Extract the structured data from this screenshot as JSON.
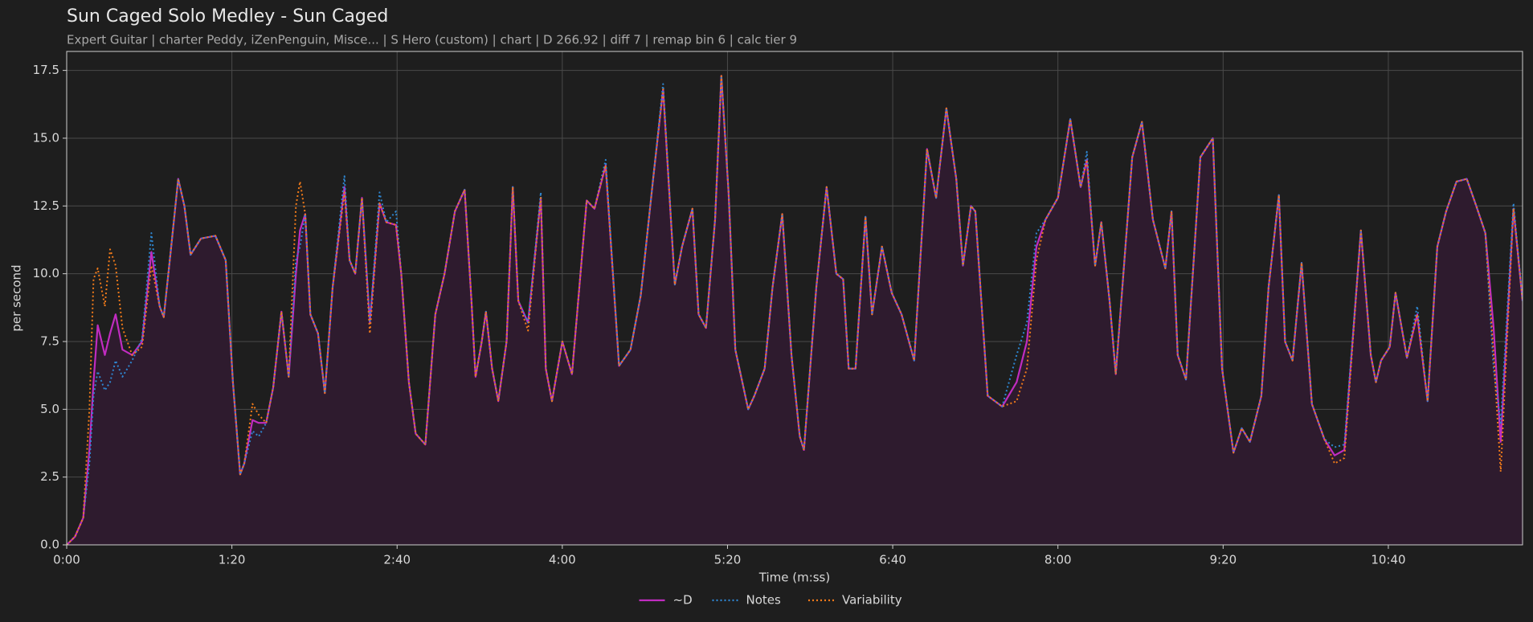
{
  "chart_data": {
    "type": "line",
    "title": "Sun Caged Solo Medley - Sun Caged",
    "subtitle": "Expert Guitar  |  charter Peddy, iZenPenguin, Misce...  |  S Hero (custom)  |  chart  |  D 266.92  |  diff 7  |  remap bin 6  |  calc tier 9",
    "x_label": "Time (m:ss)",
    "y_label": "per second",
    "xlim": [
      0,
      705
    ],
    "ylim": [
      0,
      18.2
    ],
    "xticks": [
      {
        "value": 0,
        "label": "0:00"
      },
      {
        "value": 80,
        "label": "1:20"
      },
      {
        "value": 160,
        "label": "2:40"
      },
      {
        "value": 240,
        "label": "4:00"
      },
      {
        "value": 320,
        "label": "5:20"
      },
      {
        "value": 400,
        "label": "6:40"
      },
      {
        "value": 480,
        "label": "8:00"
      },
      {
        "value": 560,
        "label": "9:20"
      },
      {
        "value": 640,
        "label": "10:40"
      }
    ],
    "yticks": [
      {
        "value": 0,
        "label": "0.0"
      },
      2.5,
      {
        "value": 5,
        "label": "5.0"
      },
      7.5,
      {
        "value": 10,
        "label": "10.0"
      },
      12.5,
      {
        "value": 15,
        "label": "15.0"
      },
      17.5
    ],
    "grid": true,
    "legend": "bottom",
    "x": [
      0,
      4,
      8,
      11,
      13,
      15,
      18.5,
      21,
      23.7,
      27,
      31.7,
      36.5,
      41,
      45,
      47,
      50.6,
      54,
      57,
      60,
      65,
      72,
      77,
      80.5,
      84,
      86,
      90,
      93,
      96.6,
      100,
      104,
      107.5,
      111,
      113,
      115.5,
      118,
      121.7,
      125,
      128.8,
      134.5,
      137,
      139.7,
      143,
      146.8,
      151.5,
      154.8,
      159.5,
      162,
      165.7,
      169,
      173.7,
      178.5,
      183,
      188,
      192.7,
      196,
      198,
      201,
      203,
      206,
      209,
      213,
      216,
      218.7,
      223.4,
      229.6,
      232,
      235,
      240,
      244.7,
      251.8,
      255.6,
      261,
      267.5,
      273,
      278,
      284,
      288.8,
      294.5,
      298,
      303,
      306,
      309.6,
      314,
      317,
      320.5,
      323.8,
      330,
      333,
      338,
      341.8,
      346.5,
      351,
      355,
      357,
      363,
      368,
      372.7,
      376,
      378.7,
      382,
      386.8,
      390,
      394.8,
      399.5,
      404.3,
      410.4,
      416.6,
      421,
      426,
      430.8,
      434,
      437.9,
      440,
      446,
      453,
      460,
      465,
      469.6,
      474,
      480,
      486,
      491,
      494,
      498,
      501,
      505,
      508,
      516,
      520.7,
      526,
      532,
      535,
      538,
      542,
      549,
      555,
      559.5,
      565,
      569,
      573,
      578.5,
      582,
      587,
      590,
      593.6,
      598,
      603,
      609,
      614,
      618.7,
      626.7,
      631.5,
      634,
      636.5,
      640.7,
      643.5,
      649,
      654,
      659,
      663.7,
      668,
      673,
      678,
      682.6,
      687,
      691,
      694.4,
      700.6,
      705
    ],
    "series": [
      {
        "name": "~D",
        "color": "#c02cc0",
        "linestyle": "solid",
        "fill": "#2e1b2e",
        "values": [
          0,
          0.3,
          1.0,
          3.5,
          6,
          8.1,
          7.0,
          7.8,
          8.5,
          7.2,
          7.0,
          7.5,
          10.8,
          8.8,
          8.4,
          11,
          13.5,
          12.5,
          10.7,
          11.3,
          11.4,
          10.5,
          6,
          2.6,
          3,
          4.6,
          4.5,
          4.5,
          5.8,
          8.6,
          6.2,
          10,
          11.6,
          12.2,
          8.5,
          7.8,
          5.6,
          9.5,
          13.2,
          10.5,
          10,
          12.8,
          8.2,
          12.6,
          11.9,
          11.8,
          10,
          6,
          4.1,
          3.7,
          8.5,
          10,
          12.3,
          13.1,
          9,
          6.2,
          7.5,
          8.6,
          6.5,
          5.3,
          7.5,
          13.2,
          9,
          8.2,
          12.8,
          6.5,
          5.3,
          7.5,
          6.3,
          12.7,
          12.4,
          14,
          6.6,
          7.2,
          9.2,
          13.5,
          16.8,
          9.6,
          11,
          12.4,
          8.5,
          8,
          12,
          17.3,
          13,
          7.2,
          5,
          5.5,
          6.5,
          9.5,
          12.2,
          7,
          4,
          3.5,
          9.5,
          13.2,
          10,
          9.8,
          6.5,
          6.5,
          12.1,
          8.5,
          11,
          9.3,
          8.5,
          6.8,
          14.6,
          12.8,
          16.1,
          13.5,
          10.3,
          12.5,
          12.3,
          5.5,
          5.1,
          6.0,
          7.5,
          11,
          12,
          12.8,
          15.7,
          13.2,
          14.2,
          10.3,
          11.9,
          9,
          6.3,
          14.3,
          15.6,
          12,
          10.2,
          12.3,
          7,
          6.1,
          14.3,
          15,
          6.5,
          3.4,
          4.3,
          3.8,
          5.5,
          9.5,
          12.9,
          7.5,
          6.8,
          10.4,
          5.2,
          3.9,
          3.3,
          3.5,
          11.6,
          7,
          6,
          6.8,
          7.3,
          9.3,
          6.9,
          8.5,
          5.3,
          11,
          12.3,
          13.4,
          13.5,
          12.5,
          11.5,
          8,
          3.8,
          12.4,
          9
        ]
      },
      {
        "name": "Notes",
        "color": "#2e86d0",
        "linestyle": "dotted",
        "values": [
          0,
          0.3,
          1.0,
          3,
          5.5,
          6.4,
          5.7,
          6.0,
          6.8,
          6.2,
          6.8,
          7.6,
          11.5,
          8.8,
          8.4,
          11,
          13.5,
          12.5,
          10.7,
          11.3,
          11.4,
          10.5,
          6,
          2.6,
          3,
          4.2,
          4.0,
          4.5,
          5.8,
          8.6,
          6.2,
          10.5,
          11,
          12.2,
          8.5,
          7.8,
          5.6,
          9.5,
          13.6,
          10.5,
          10,
          12.8,
          8.2,
          13,
          11.9,
          12.3,
          10,
          6,
          4.1,
          3.7,
          8.5,
          10,
          12.3,
          13.1,
          9,
          6.2,
          7.5,
          8.6,
          6.5,
          5.3,
          7.5,
          13.2,
          9,
          8.2,
          13,
          6.5,
          5.3,
          7.5,
          6.3,
          12.7,
          12.4,
          14.2,
          6.6,
          7.2,
          9.2,
          13.5,
          17,
          9.6,
          11,
          12.4,
          8.5,
          8,
          12,
          17.3,
          13,
          7.2,
          5,
          5.5,
          6.5,
          9.5,
          12.2,
          7,
          4,
          3.5,
          9.5,
          13.2,
          10,
          9.8,
          6.5,
          6.5,
          12.1,
          8.5,
          11,
          9.3,
          8.5,
          6.8,
          14.6,
          12.8,
          16.1,
          13.5,
          10.3,
          12.5,
          12.3,
          5.5,
          5.1,
          7.0,
          8.2,
          11.5,
          12,
          12.8,
          15.7,
          13.2,
          14.5,
          10.3,
          11.9,
          9,
          6.3,
          14.3,
          15.6,
          12,
          10.2,
          12.3,
          7,
          6.1,
          14.3,
          15,
          6.5,
          3.4,
          4.3,
          3.8,
          5.5,
          9.5,
          12.9,
          7.5,
          6.8,
          10.4,
          5.2,
          3.9,
          3.6,
          3.7,
          11.6,
          7,
          6,
          6.8,
          7.3,
          9.3,
          6.9,
          8.8,
          5.3,
          11,
          12.3,
          13.4,
          13.5,
          12.5,
          11.5,
          6.5,
          4.5,
          12.6,
          9
        ]
      },
      {
        "name": "Variability",
        "color": "#f07a1a",
        "linestyle": "dotted",
        "values": [
          0,
          0.3,
          1.0,
          5,
          9.8,
          10.2,
          8.8,
          10.9,
          10.3,
          8.0,
          7.0,
          7.3,
          10.3,
          8.8,
          8.4,
          11,
          13.5,
          12.5,
          10.7,
          11.3,
          11.4,
          10.5,
          6,
          2.6,
          3,
          5.2,
          4.8,
          4.5,
          5.8,
          8.6,
          6.2,
          12.5,
          13.4,
          12.2,
          8.5,
          7.8,
          5.6,
          9.5,
          13,
          10.5,
          10,
          12.8,
          7.8,
          12.6,
          11.9,
          11.8,
          10,
          6,
          4.1,
          3.7,
          8.5,
          10,
          12.3,
          13.1,
          9,
          6.2,
          7.5,
          8.6,
          6.5,
          5.3,
          7.5,
          13.2,
          9,
          7.9,
          12.8,
          6.5,
          5.3,
          7.5,
          6.3,
          12.7,
          12.4,
          14,
          6.6,
          7.2,
          9.2,
          13.5,
          16.8,
          9.6,
          11,
          12.4,
          8.5,
          8,
          12,
          17.3,
          13,
          7.2,
          5,
          5.5,
          6.5,
          9.5,
          12.2,
          7,
          4,
          3.5,
          9.5,
          13.2,
          10,
          9.8,
          6.5,
          6.5,
          12.1,
          8.5,
          11,
          9.3,
          8.5,
          6.8,
          14.6,
          12.8,
          16.1,
          13.5,
          10.3,
          12.5,
          12.3,
          5.5,
          5.1,
          5.3,
          6.5,
          10.5,
          12,
          12.8,
          15.7,
          13.2,
          14.2,
          10.3,
          11.9,
          9,
          6.3,
          14.3,
          15.6,
          12,
          10.2,
          12.3,
          7,
          6.1,
          14.3,
          15,
          6.5,
          3.4,
          4.3,
          3.8,
          5.5,
          9.5,
          12.9,
          7.5,
          6.8,
          10.4,
          5.2,
          3.9,
          3.0,
          3.2,
          11.6,
          7,
          6,
          6.8,
          7.3,
          9.3,
          6.9,
          8.5,
          5.3,
          11,
          12.3,
          13.4,
          13.5,
          12.5,
          11.5,
          7,
          2.7,
          12.4,
          9
        ]
      }
    ]
  }
}
